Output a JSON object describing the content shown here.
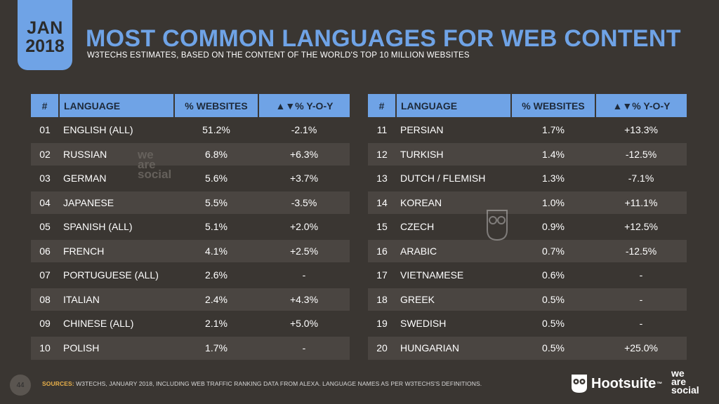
{
  "badge": {
    "month": "JAN",
    "year": "2018"
  },
  "header": {
    "title": "MOST COMMON LANGUAGES FOR WEB CONTENT",
    "subtitle": "W3TECHS ESTIMATES, BASED ON THE CONTENT OF THE WORLD'S TOP 10 MILLION WEBSITES"
  },
  "chart_data": {
    "type": "table",
    "columns": [
      "#",
      "LANGUAGE",
      "% WEBSITES",
      "▲▼% Y-O-Y"
    ],
    "rows": [
      [
        "01",
        "ENGLISH (ALL)",
        "51.2%",
        "-2.1%"
      ],
      [
        "02",
        "RUSSIAN",
        "6.8%",
        "+6.3%"
      ],
      [
        "03",
        "GERMAN",
        "5.6%",
        "+3.7%"
      ],
      [
        "04",
        "JAPANESE",
        "5.5%",
        "-3.5%"
      ],
      [
        "05",
        "SPANISH (ALL)",
        "5.1%",
        "+2.0%"
      ],
      [
        "06",
        "FRENCH",
        "4.1%",
        "+2.5%"
      ],
      [
        "07",
        "PORTUGUESE (ALL)",
        "2.6%",
        "-"
      ],
      [
        "08",
        "ITALIAN",
        "2.4%",
        "+4.3%"
      ],
      [
        "09",
        "CHINESE (ALL)",
        "2.1%",
        "+5.0%"
      ],
      [
        "10",
        "POLISH",
        "1.7%",
        "-"
      ],
      [
        "11",
        "PERSIAN",
        "1.7%",
        "+13.3%"
      ],
      [
        "12",
        "TURKISH",
        "1.4%",
        "-12.5%"
      ],
      [
        "13",
        "DUTCH / FLEMISH",
        "1.3%",
        "-7.1%"
      ],
      [
        "14",
        "KOREAN",
        "1.0%",
        "+11.1%"
      ],
      [
        "15",
        "CZECH",
        "0.9%",
        "+12.5%"
      ],
      [
        "16",
        "ARABIC",
        "0.7%",
        "-12.5%"
      ],
      [
        "17",
        "VIETNAMESE",
        "0.6%",
        "-"
      ],
      [
        "18",
        "GREEK",
        "0.5%",
        "-"
      ],
      [
        "19",
        "SWEDISH",
        "0.5%",
        "-"
      ],
      [
        "20",
        "HUNGARIAN",
        "0.5%",
        "+25.0%"
      ]
    ]
  },
  "watermark": {
    "lines": [
      "we",
      "are",
      "social"
    ]
  },
  "footer": {
    "page_number": "44",
    "sources_label": "SOURCES:",
    "sources_text": "W3TECHS, JANUARY 2018, INCLUDING WEB TRAFFIC RANKING DATA FROM ALEXA. LANGUAGE NAMES AS PER W3TECHS'S DEFINITIONS.",
    "brand_hootsuite": "Hootsuite",
    "brand_tm": "™",
    "brand_was": [
      "we",
      "are",
      "social"
    ]
  },
  "colors": {
    "accent": "#6fa3e6",
    "background": "#3a3632",
    "row_alt": "#4a4541",
    "sources_label": "#e8b04a"
  },
  "icons": {
    "owl": "hootsuite-owl-icon"
  }
}
